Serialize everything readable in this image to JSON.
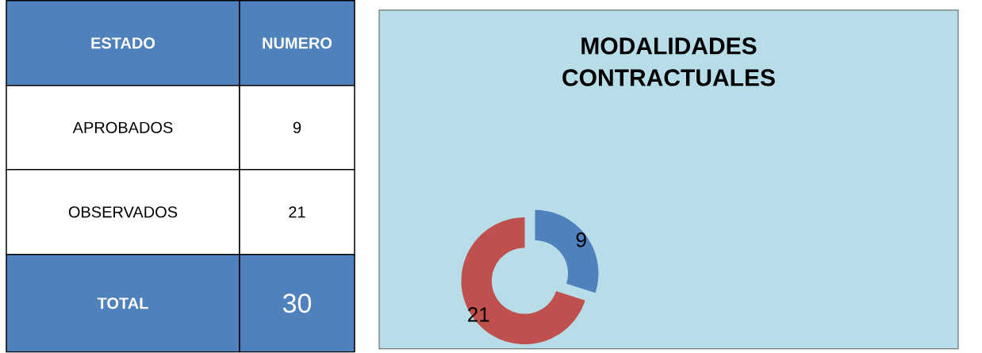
{
  "chart_data": [
    {
      "type": "other",
      "annotations": [
        "ESTADO",
        "NUMERO",
        "APROBADOS",
        "9",
        "OBSERVADOS",
        "21",
        "TOTAL",
        "30"
      ]
    },
    {
      "type": "donut",
      "title": "MODALIDADES CONTRACTUALES",
      "categories": [
        null,
        null
      ],
      "values": [
        9,
        21
      ],
      "colors": [
        "#4f81bd",
        "#c0504d"
      ],
      "data_labels": true
    }
  ]
}
